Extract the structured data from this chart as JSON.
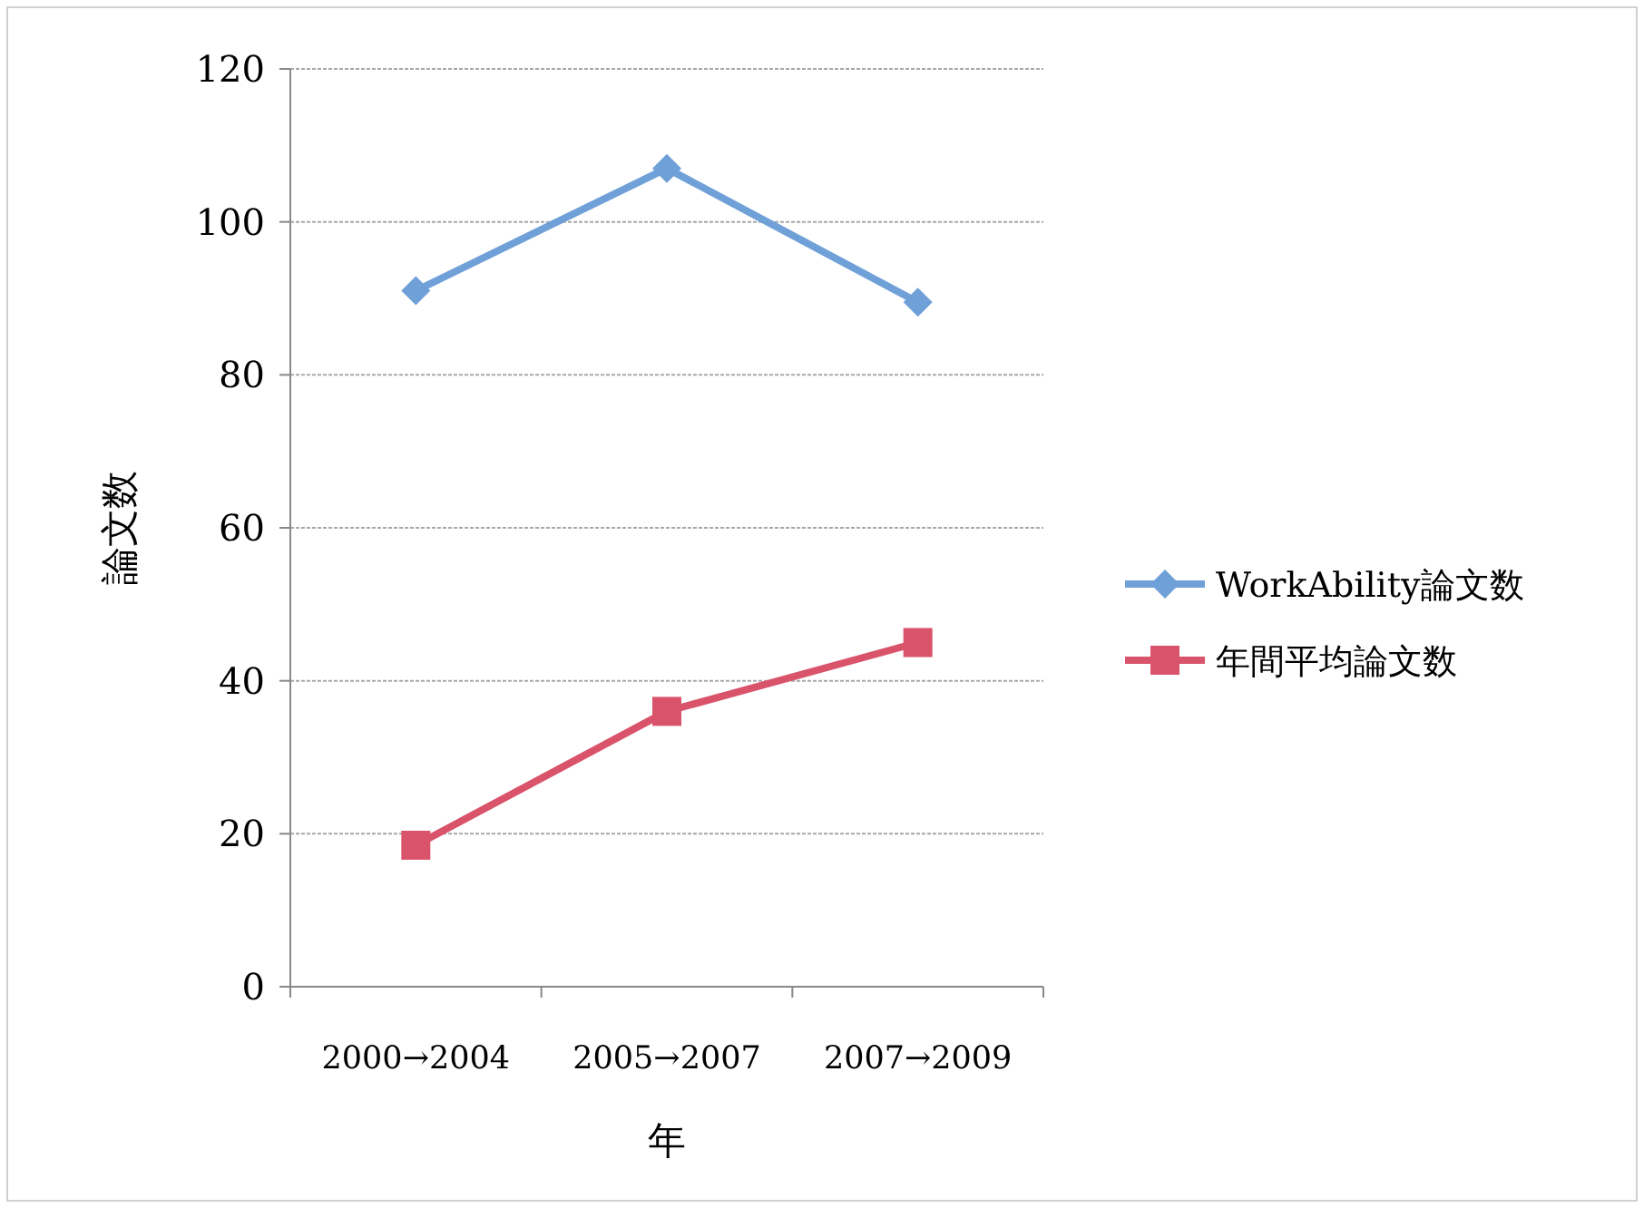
{
  "chart_data": {
    "type": "line",
    "xlabel": "年",
    "ylabel": "論文数",
    "categories": [
      "2000→2004",
      "2005→2007",
      "2007→2009"
    ],
    "ylim": [
      0,
      120
    ],
    "yticks": [
      0,
      20,
      40,
      60,
      80,
      100,
      120
    ],
    "grid": "y",
    "legend": "right",
    "series": [
      {
        "name": "WorkAbility論文数",
        "color": "#6fa0d8",
        "marker": "diamond",
        "values": [
          91,
          107,
          89.5
        ]
      },
      {
        "name": "年間平均論文数",
        "color": "#d9536b",
        "marker": "square",
        "values": [
          18.5,
          36,
          45
        ]
      }
    ]
  }
}
